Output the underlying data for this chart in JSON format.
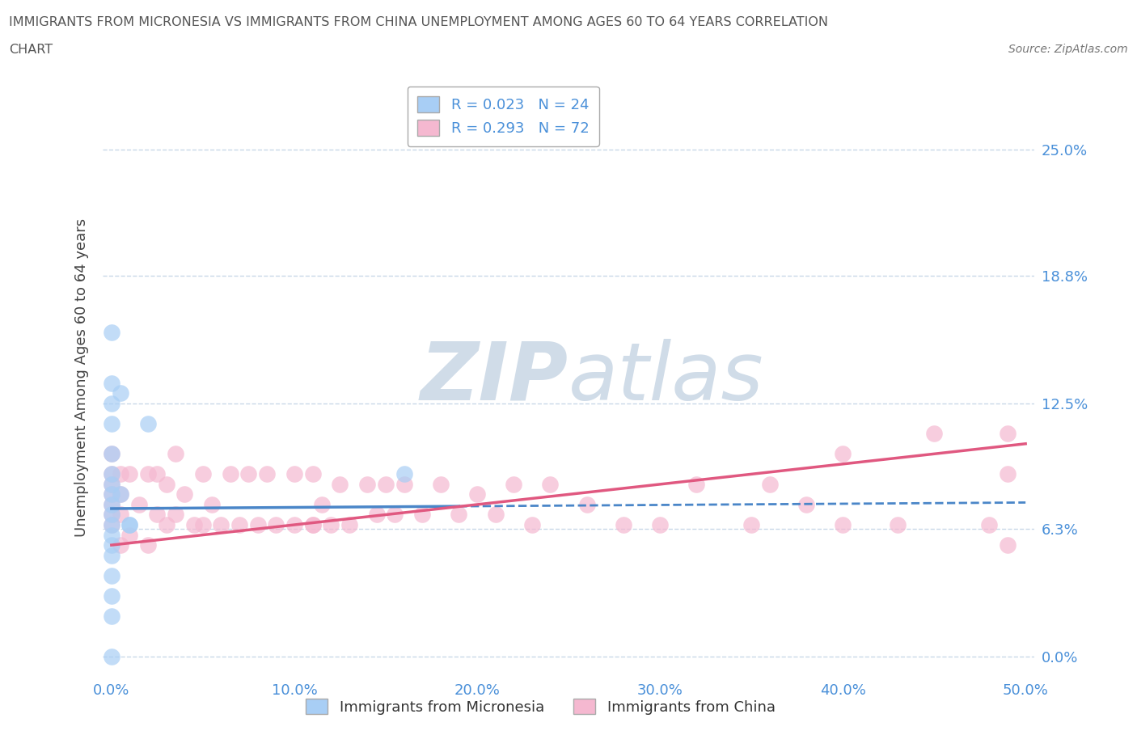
{
  "title_line1": "IMMIGRANTS FROM MICRONESIA VS IMMIGRANTS FROM CHINA UNEMPLOYMENT AMONG AGES 60 TO 64 YEARS CORRELATION",
  "title_line2": "CHART",
  "source": "Source: ZipAtlas.com",
  "ylabel": "Unemployment Among Ages 60 to 64 years",
  "xlim": [
    -0.005,
    0.505
  ],
  "ylim": [
    -0.01,
    0.285
  ],
  "yticks": [
    0.0,
    0.063,
    0.125,
    0.188,
    0.25
  ],
  "ytick_labels": [
    "0.0%",
    "6.3%",
    "12.5%",
    "18.8%",
    "25.0%"
  ],
  "xticks": [
    0.0,
    0.1,
    0.2,
    0.3,
    0.4,
    0.5
  ],
  "xtick_labels": [
    "0.0%",
    "10.0%",
    "20.0%",
    "30.0%",
    "40.0%",
    "50.0%"
  ],
  "micronesia_color": "#a8cef5",
  "china_color": "#f5b8d0",
  "trend_micronesia_color": "#4a86c8",
  "trend_china_color": "#e05880",
  "R_micronesia": 0.023,
  "N_micronesia": 24,
  "R_china": 0.293,
  "N_china": 72,
  "micronesia_scatter_x": [
    0.0,
    0.0,
    0.0,
    0.0,
    0.0,
    0.0,
    0.0,
    0.0,
    0.0,
    0.005,
    0.005,
    0.01,
    0.01,
    0.02,
    0.16,
    0.0,
    0.0,
    0.0,
    0.0,
    0.0,
    0.0,
    0.0,
    0.0,
    0.0
  ],
  "micronesia_scatter_y": [
    0.16,
    0.135,
    0.125,
    0.115,
    0.1,
    0.09,
    0.085,
    0.065,
    0.05,
    0.08,
    0.13,
    0.065,
    0.065,
    0.115,
    0.09,
    0.0,
    0.02,
    0.03,
    0.04,
    0.055,
    0.06,
    0.07,
    0.075,
    0.08
  ],
  "china_scatter_x": [
    0.0,
    0.0,
    0.0,
    0.0,
    0.0,
    0.0,
    0.0,
    0.005,
    0.005,
    0.005,
    0.005,
    0.01,
    0.01,
    0.015,
    0.02,
    0.02,
    0.025,
    0.025,
    0.03,
    0.03,
    0.035,
    0.035,
    0.04,
    0.045,
    0.05,
    0.05,
    0.055,
    0.06,
    0.065,
    0.07,
    0.075,
    0.08,
    0.085,
    0.09,
    0.1,
    0.1,
    0.11,
    0.11,
    0.115,
    0.12,
    0.125,
    0.13,
    0.14,
    0.145,
    0.15,
    0.155,
    0.16,
    0.17,
    0.18,
    0.19,
    0.2,
    0.21,
    0.22,
    0.23,
    0.24,
    0.26,
    0.28,
    0.3,
    0.32,
    0.35,
    0.36,
    0.38,
    0.4,
    0.43,
    0.45,
    0.48,
    0.49,
    0.49,
    0.49,
    0.11,
    0.24,
    0.4
  ],
  "china_scatter_y": [
    0.065,
    0.07,
    0.075,
    0.08,
    0.085,
    0.09,
    0.1,
    0.055,
    0.07,
    0.08,
    0.09,
    0.06,
    0.09,
    0.075,
    0.055,
    0.09,
    0.07,
    0.09,
    0.065,
    0.085,
    0.07,
    0.1,
    0.08,
    0.065,
    0.065,
    0.09,
    0.075,
    0.065,
    0.09,
    0.065,
    0.09,
    0.065,
    0.09,
    0.065,
    0.065,
    0.09,
    0.065,
    0.09,
    0.075,
    0.065,
    0.085,
    0.065,
    0.085,
    0.07,
    0.085,
    0.07,
    0.085,
    0.07,
    0.085,
    0.07,
    0.08,
    0.07,
    0.085,
    0.065,
    0.085,
    0.075,
    0.065,
    0.065,
    0.085,
    0.065,
    0.085,
    0.075,
    0.065,
    0.065,
    0.11,
    0.065,
    0.09,
    0.11,
    0.055,
    0.065,
    0.26,
    0.1
  ],
  "micronesia_trend_x": [
    0.0,
    0.5
  ],
  "micronesia_trend_y": [
    0.073,
    0.076
  ],
  "china_trend_x": [
    0.0,
    0.5
  ],
  "china_trend_y": [
    0.055,
    0.105
  ],
  "legend_label_micronesia": "R = 0.023   N = 24",
  "legend_label_china": "R = 0.293   N = 72",
  "bottom_label_micronesia": "Immigrants from Micronesia",
  "bottom_label_china": "Immigrants from China",
  "tick_color": "#4a90d9",
  "ylabel_color": "#444444",
  "title_color": "#555555",
  "source_color": "#777777",
  "grid_color": "#c8d8e8",
  "watermark_text": "ZIPatlas",
  "watermark_color": "#d0dce8"
}
